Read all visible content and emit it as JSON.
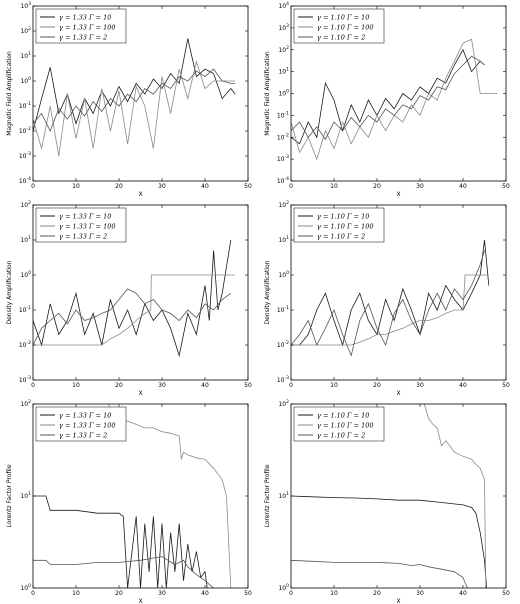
{
  "colors": {
    "gamma_10": "#1a1a1a",
    "gamma_100": "#8a8a8a",
    "gamma_2": "#555555"
  },
  "chart_data": [
    {
      "type": "line",
      "xlabel": "X",
      "ylabel": "Magnetic Field Amplification",
      "yscale": "log",
      "xlim": [
        0,
        50
      ],
      "ylim": [
        0.0001,
        1000
      ],
      "xticks": [
        "0",
        "10",
        "20",
        "30",
        "40",
        "50"
      ],
      "yticks": [
        "10^-4",
        "10^-3",
        "10^-2",
        "10^-1",
        "10^0",
        "10^1",
        "10^2",
        "10^3"
      ],
      "legend_position": "top-left",
      "series": [
        {
          "name": "γ = 1.33 Γ = 10",
          "color_key": "gamma_10",
          "x": [
            0,
            2,
            4,
            6,
            8,
            10,
            12,
            14,
            16,
            18,
            20,
            22,
            24,
            26,
            28,
            30,
            32,
            34,
            36,
            38,
            40,
            42,
            44,
            46,
            47
          ],
          "y": [
            0.01,
            0.2,
            3.5,
            0.05,
            0.3,
            0.02,
            0.2,
            0.05,
            0.4,
            0.1,
            0.6,
            0.15,
            0.8,
            0.3,
            1.2,
            0.5,
            2.0,
            0.8,
            50,
            1.5,
            3.0,
            2.0,
            0.2,
            0.5,
            0.3
          ]
        },
        {
          "name": "γ = 1.33 Γ = 100",
          "color_key": "gamma_100",
          "x": [
            0,
            2,
            4,
            6,
            8,
            10,
            12,
            14,
            16,
            18,
            20,
            22,
            24,
            26,
            28,
            30,
            32,
            34,
            36,
            38,
            40,
            42,
            44,
            46,
            47
          ],
          "y": [
            0.03,
            0.002,
            0.1,
            0.001,
            0.3,
            0.005,
            0.2,
            0.002,
            0.5,
            0.01,
            0.4,
            0.003,
            0.6,
            0.1,
            0.002,
            1.5,
            0.05,
            3.0,
            0.2,
            6.0,
            0.5,
            1.0,
            1.0,
            1.0,
            1.0
          ]
        },
        {
          "name": "γ = 1.33 Γ = 2",
          "color_key": "gamma_2",
          "x": [
            0,
            2,
            4,
            6,
            8,
            10,
            12,
            14,
            16,
            18,
            20,
            22,
            24,
            26,
            28,
            30,
            32,
            34,
            36,
            38,
            40,
            42,
            44,
            46,
            47
          ],
          "y": [
            0.02,
            0.05,
            0.01,
            0.08,
            0.03,
            0.1,
            0.04,
            0.15,
            0.06,
            0.2,
            0.1,
            0.3,
            0.15,
            0.5,
            0.3,
            0.8,
            0.5,
            1.5,
            1.0,
            2.5,
            1.5,
            3.0,
            1.0,
            0.8,
            0.8
          ]
        }
      ]
    },
    {
      "type": "line",
      "xlabel": "X",
      "ylabel": "Magnetic Field Amplification",
      "yscale": "log",
      "xlim": [
        0,
        50
      ],
      "ylim": [
        0.0001,
        10000
      ],
      "xticks": [
        "0",
        "10",
        "20",
        "30",
        "40",
        "50"
      ],
      "yticks": [
        "10^-4",
        "10^-3",
        "10^-2",
        "10^-1",
        "10^0",
        "10^1",
        "10^2",
        "10^3",
        "10^4"
      ],
      "legend_position": "top-left",
      "series": [
        {
          "name": "γ = 1.10 Γ = 10",
          "color_key": "gamma_10",
          "x": [
            0,
            2,
            4,
            6,
            8,
            10,
            12,
            14,
            16,
            18,
            20,
            22,
            24,
            26,
            28,
            30,
            32,
            34,
            36,
            38,
            40,
            42,
            44,
            45
          ],
          "y": [
            0.01,
            0.005,
            0.05,
            0.01,
            3.0,
            0.5,
            0.02,
            0.3,
            0.05,
            0.5,
            0.1,
            0.6,
            0.2,
            1.0,
            0.5,
            2.0,
            1.0,
            5.0,
            3.0,
            20,
            100,
            10,
            30,
            20
          ]
        },
        {
          "name": "γ = 1.10 Γ = 100",
          "color_key": "gamma_100",
          "x": [
            0,
            2,
            4,
            6,
            8,
            10,
            12,
            14,
            16,
            18,
            20,
            22,
            24,
            26,
            28,
            30,
            32,
            34,
            36,
            38,
            40,
            42,
            44,
            46,
            48
          ],
          "y": [
            0.05,
            0.002,
            0.01,
            0.001,
            0.02,
            0.003,
            0.05,
            0.005,
            0.03,
            0.01,
            0.1,
            0.02,
            0.1,
            0.05,
            0.3,
            0.1,
            1.0,
            0.5,
            5.0,
            30,
            200,
            300,
            1.0,
            1.0,
            1.0
          ]
        },
        {
          "name": "γ = 1.10 Γ = 2",
          "color_key": "gamma_2",
          "x": [
            0,
            2,
            4,
            6,
            8,
            10,
            12,
            14,
            16,
            18,
            20,
            22,
            24,
            26,
            28,
            30,
            32,
            34,
            36,
            38,
            40,
            42,
            44,
            45
          ],
          "y": [
            0.02,
            0.05,
            0.01,
            0.03,
            0.008,
            0.05,
            0.02,
            0.08,
            0.03,
            0.1,
            0.05,
            0.2,
            0.1,
            0.3,
            0.2,
            0.8,
            0.5,
            2.0,
            1.5,
            8.0,
            20,
            50,
            30,
            20
          ]
        }
      ]
    },
    {
      "type": "line",
      "xlabel": "X",
      "ylabel": "Density Amplification",
      "yscale": "log",
      "xlim": [
        0,
        50
      ],
      "ylim": [
        0.001,
        100
      ],
      "xticks": [
        "0",
        "10",
        "20",
        "30",
        "40",
        "50"
      ],
      "yticks": [
        "10^-3",
        "10^-2",
        "10^-1",
        "10^0",
        "10^1",
        "10^2"
      ],
      "legend_position": "top-left",
      "series": [
        {
          "name": "γ = 1.33 Γ = 10",
          "color_key": "gamma_10",
          "x": [
            0,
            2,
            4,
            6,
            8,
            10,
            12,
            14,
            16,
            18,
            20,
            22,
            24,
            26,
            28,
            30,
            32,
            34,
            36,
            38,
            40,
            41,
            42,
            43,
            44,
            46
          ],
          "y": [
            0.05,
            0.01,
            0.15,
            0.02,
            0.05,
            0.3,
            0.02,
            0.08,
            0.01,
            0.2,
            0.03,
            0.1,
            0.02,
            0.15,
            0.05,
            0.1,
            0.03,
            0.005,
            0.08,
            0.02,
            0.5,
            0.05,
            5.0,
            0.1,
            0.3,
            10
          ]
        },
        {
          "name": "γ = 1.33 Γ = 100",
          "color_key": "gamma_100",
          "x": [
            0,
            2,
            4,
            6,
            8,
            10,
            12,
            14,
            16,
            18,
            20,
            22,
            24,
            26,
            27.4,
            27.5,
            30,
            35,
            40,
            45,
            47
          ],
          "y": [
            0.01,
            0.01,
            0.01,
            0.01,
            0.01,
            0.01,
            0.01,
            0.01,
            0.01,
            0.015,
            0.02,
            0.03,
            0.05,
            0.08,
            0.1,
            1.0,
            1.0,
            1.0,
            1.0,
            1.0,
            1.0
          ]
        },
        {
          "name": "γ = 1.33 Γ = 2",
          "color_key": "gamma_2",
          "x": [
            0,
            2,
            4,
            6,
            8,
            10,
            12,
            14,
            16,
            18,
            20,
            22,
            24,
            26,
            28,
            30,
            32,
            34,
            36,
            38,
            40,
            42,
            44,
            46
          ],
          "y": [
            0.01,
            0.03,
            0.05,
            0.08,
            0.04,
            0.1,
            0.05,
            0.06,
            0.08,
            0.1,
            0.2,
            0.4,
            0.3,
            0.15,
            0.2,
            0.1,
            0.08,
            0.05,
            0.1,
            0.06,
            0.15,
            0.1,
            0.2,
            0.3
          ]
        }
      ]
    },
    {
      "type": "line",
      "xlabel": "X",
      "ylabel": "Density Amplification",
      "yscale": "log",
      "xlim": [
        0,
        50
      ],
      "ylim": [
        0.001,
        100
      ],
      "xticks": [
        "0",
        "10",
        "20",
        "30",
        "40",
        "50"
      ],
      "yticks": [
        "10^-3",
        "10^-2",
        "10^-1",
        "10^0",
        "10^1",
        "10^2"
      ],
      "legend_position": "top-left",
      "series": [
        {
          "name": "γ = 1.10 Γ = 10",
          "color_key": "gamma_10",
          "x": [
            0,
            2,
            4,
            6,
            8,
            10,
            12,
            14,
            16,
            18,
            20,
            22,
            24,
            26,
            28,
            30,
            32,
            34,
            36,
            38,
            40,
            42,
            44,
            45,
            46
          ],
          "y": [
            0.01,
            0.01,
            0.02,
            0.1,
            0.3,
            0.05,
            0.01,
            0.1,
            0.3,
            0.05,
            0.02,
            0.2,
            0.05,
            0.4,
            0.1,
            0.02,
            0.3,
            0.1,
            0.5,
            0.2,
            0.1,
            0.3,
            1.0,
            10,
            0.5
          ]
        },
        {
          "name": "γ = 1.10 Γ = 100",
          "color_key": "gamma_100",
          "x": [
            0,
            2,
            4,
            6,
            8,
            10,
            12,
            14,
            16,
            18,
            20,
            22,
            24,
            26,
            28,
            30,
            32,
            34,
            36,
            38,
            40,
            40.5,
            42,
            44,
            46
          ],
          "y": [
            0.01,
            0.01,
            0.01,
            0.01,
            0.01,
            0.01,
            0.01,
            0.01,
            0.012,
            0.015,
            0.02,
            0.02,
            0.025,
            0.03,
            0.04,
            0.05,
            0.05,
            0.06,
            0.08,
            0.1,
            0.1,
            1.0,
            1.0,
            1.0,
            1.0
          ]
        },
        {
          "name": "γ = 1.10 Γ = 2",
          "color_key": "gamma_2",
          "x": [
            0,
            2,
            4,
            6,
            8,
            10,
            12,
            14,
            16,
            18,
            20,
            22,
            24,
            26,
            28,
            30,
            32,
            34,
            36,
            38,
            40,
            42,
            44,
            45
          ],
          "y": [
            0.01,
            0.02,
            0.05,
            0.01,
            0.03,
            0.1,
            0.02,
            0.005,
            0.05,
            0.15,
            0.03,
            0.01,
            0.08,
            0.2,
            0.05,
            0.02,
            0.1,
            0.3,
            0.1,
            0.4,
            0.2,
            0.5,
            2.0,
            5.0
          ]
        }
      ]
    },
    {
      "type": "line",
      "xlabel": "X",
      "ylabel": "Lorentz Factor Profile",
      "yscale": "log",
      "xlim": [
        0,
        50
      ],
      "ylim": [
        1,
        100
      ],
      "xticks": [
        "0",
        "10",
        "20",
        "30",
        "40",
        "50"
      ],
      "yticks": [
        "10^0",
        "10^1",
        "10^2"
      ],
      "legend_position": "top-left",
      "series": [
        {
          "name": "γ = 1.33 Γ = 10",
          "color_key": "gamma_10",
          "x": [
            0,
            3,
            4,
            10,
            15,
            20,
            21,
            22,
            24,
            25,
            26,
            27,
            28,
            29,
            30,
            31,
            32,
            33,
            34,
            35,
            36,
            37,
            38,
            39,
            40,
            40.5
          ],
          "y": [
            10,
            10,
            7,
            7,
            6.5,
            6.5,
            6,
            1,
            6,
            1,
            5,
            1.5,
            6,
            1,
            5,
            1,
            4,
            1.5,
            5,
            1.2,
            3,
            1.5,
            2.5,
            1.3,
            1.5,
            1
          ]
        },
        {
          "name": "γ = 1.33 Γ = 100",
          "color_key": "gamma_100",
          "x": [
            17.5,
            18,
            20,
            22,
            24,
            26,
            28,
            30,
            32,
            34,
            34.5,
            35,
            36,
            38,
            40,
            42,
            44,
            45,
            46
          ],
          "y": [
            100,
            90,
            70,
            65,
            60,
            55,
            55,
            50,
            48,
            45,
            25,
            30,
            28,
            26,
            25,
            20,
            15,
            10,
            1
          ]
        },
        {
          "name": "γ = 1.33 Γ = 2",
          "color_key": "gamma_2",
          "x": [
            0,
            3,
            4,
            10,
            15,
            20,
            25,
            30,
            33,
            35,
            36,
            38,
            40,
            42
          ],
          "y": [
            2,
            2,
            1.8,
            1.8,
            1.9,
            1.9,
            2,
            2.2,
            1.8,
            2,
            1.7,
            1.4,
            1.2,
            1
          ]
        }
      ]
    },
    {
      "type": "line",
      "xlabel": "X",
      "ylabel": "Lorentz Factor Profile",
      "yscale": "log",
      "xlim": [
        0,
        50
      ],
      "ylim": [
        1,
        100
      ],
      "xticks": [
        "0",
        "10",
        "20",
        "30",
        "40",
        "50"
      ],
      "yticks": [
        "10^0",
        "10^1",
        "10^2"
      ],
      "legend_position": "top-left",
      "series": [
        {
          "name": "γ = 1.10 Γ = 10",
          "color_key": "gamma_10",
          "x": [
            0,
            5,
            10,
            15,
            20,
            25,
            30,
            35,
            40,
            42,
            43,
            44,
            45,
            45.5
          ],
          "y": [
            10,
            9.8,
            9.6,
            9.5,
            9.3,
            9.0,
            9.0,
            8.5,
            8.0,
            7.5,
            6.5,
            4.0,
            2.0,
            1
          ]
        },
        {
          "name": "γ = 1.10 Γ = 100",
          "color_key": "gamma_100",
          "x": [
            31,
            32,
            33,
            34,
            35,
            36,
            38,
            40,
            42,
            43,
            44,
            45,
            45.3
          ],
          "y": [
            100,
            70,
            60,
            55,
            35,
            40,
            30,
            27,
            25,
            22,
            20,
            15,
            1
          ]
        },
        {
          "name": "γ = 1.10 Γ = 2",
          "color_key": "gamma_2",
          "x": [
            0,
            5,
            10,
            15,
            20,
            25,
            28,
            30,
            32,
            35,
            38,
            40,
            41
          ],
          "y": [
            2,
            1.95,
            1.9,
            1.9,
            1.9,
            1.85,
            1.75,
            1.8,
            1.7,
            1.6,
            1.5,
            1.3,
            1
          ]
        }
      ]
    }
  ]
}
